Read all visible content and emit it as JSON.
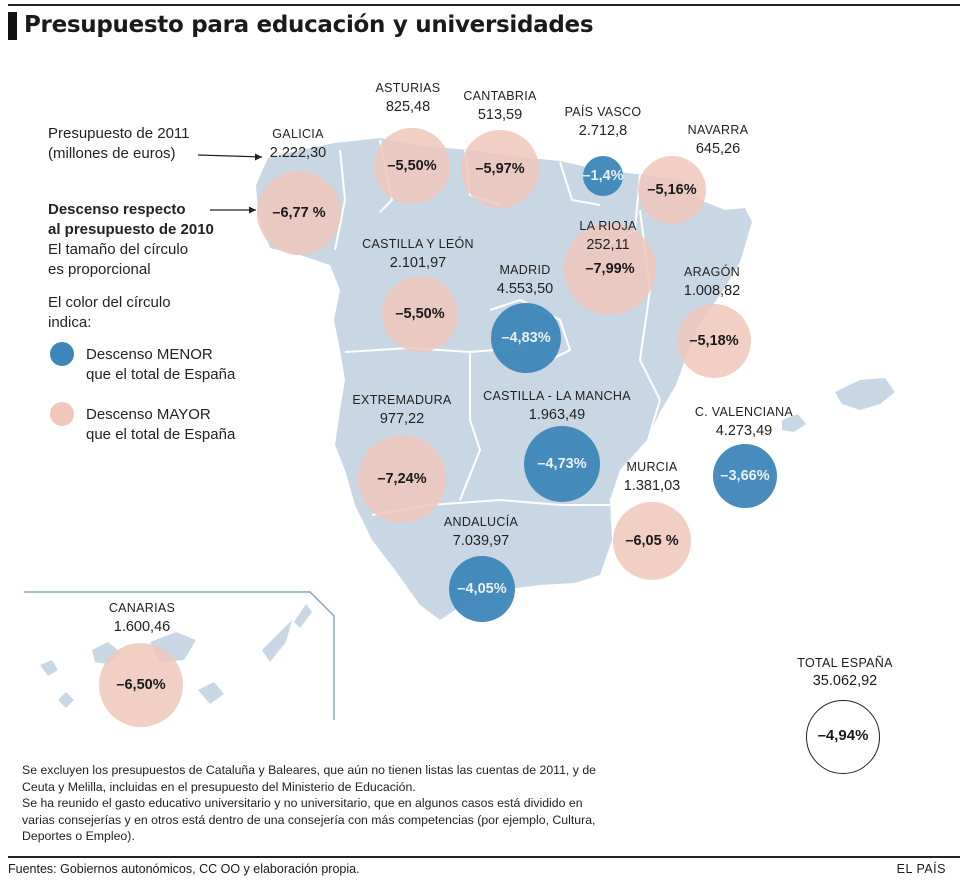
{
  "title": "Presupuesto para educación y universidades",
  "colors": {
    "land": "#c9d7e4",
    "border": "#ffffff",
    "blue": "#3d86b8",
    "pink": "#efc7bb",
    "ink": "#1a1a1a"
  },
  "legend": {
    "budget_line1": "Presupuesto de 2011",
    "budget_line2": "(millones de euros)",
    "decline_line1": "Descenso respecto",
    "decline_line2": "al presupuesto de 2010",
    "size_line1": "El tamaño del círculo",
    "size_line2": "es proporcional",
    "color_line1": "El color del círculo",
    "color_line2": "indica:",
    "lower_line1": "Descenso MENOR",
    "lower_line2": "que el total de España",
    "higher_line1": "Descenso MAYOR",
    "higher_line2": "que el total de España"
  },
  "regions": [
    {
      "name": "GALICIA",
      "value": "2.222,30",
      "change": "–6,77 %",
      "color": "pink"
    },
    {
      "name": "ASTURIAS",
      "value": "825,48",
      "change": "–5,50%",
      "color": "pink"
    },
    {
      "name": "CANTABRIA",
      "value": "513,59",
      "change": "–5,97%",
      "color": "pink"
    },
    {
      "name": "PAÍS VASCO",
      "value": "2.712,8",
      "change": "–1,4%",
      "color": "blue"
    },
    {
      "name": "NAVARRA",
      "value": "645,26",
      "change": "–5,16%",
      "color": "pink"
    },
    {
      "name": "LA RIOJA",
      "value": "252,11",
      "change": "–7,99%",
      "color": "pink"
    },
    {
      "name": "CASTILLA Y LEÓN",
      "value": "2.101,97",
      "change": "–5,50%",
      "color": "pink"
    },
    {
      "name": "MADRID",
      "value": "4.553,50",
      "change": "–4,83%",
      "color": "blue"
    },
    {
      "name": "ARAGÓN",
      "value": "1.008,82",
      "change": "–5,18%",
      "color": "pink"
    },
    {
      "name": "EXTREMADURA",
      "value": "977,22",
      "change": "–7,24%",
      "color": "pink"
    },
    {
      "name": "CASTILLA - LA MANCHA",
      "value": "1.963,49",
      "change": "–4,73%",
      "color": "blue"
    },
    {
      "name": "C. VALENCIANA",
      "value": "4.273,49",
      "change": "–3,66%",
      "color": "blue"
    },
    {
      "name": "MURCIA",
      "value": "1.381,03",
      "change": "–6,05 %",
      "color": "pink"
    },
    {
      "name": "ANDALUCÍA",
      "value": "7.039,97",
      "change": "–4,05%",
      "color": "blue"
    },
    {
      "name": "CANARIAS",
      "value": "1.600,46",
      "change": "–6,50%",
      "color": "pink"
    }
  ],
  "total": {
    "name": "TOTAL ESPAÑA",
    "value": "35.062,92",
    "change": "–4,94%"
  },
  "notes": [
    "Se excluyen los presupuestos de Cataluña y Baleares, que aún no tienen listas las cuentas de 2011, y de Ceuta y Melilla, incluidas en el presupuesto del Ministerio de Educación.",
    "Se ha reunido el gasto educativo universitario y no universitario, que en algunos casos está dividido en varias consejerías y en otros está dentro de una consejería con más competencias (por ejemplo, Cultura, Deportes o Empleo)."
  ],
  "source": "Fuentes: Gobiernos autonómicos, CC OO y elaboración propia.",
  "brand": "EL PAÍS"
}
